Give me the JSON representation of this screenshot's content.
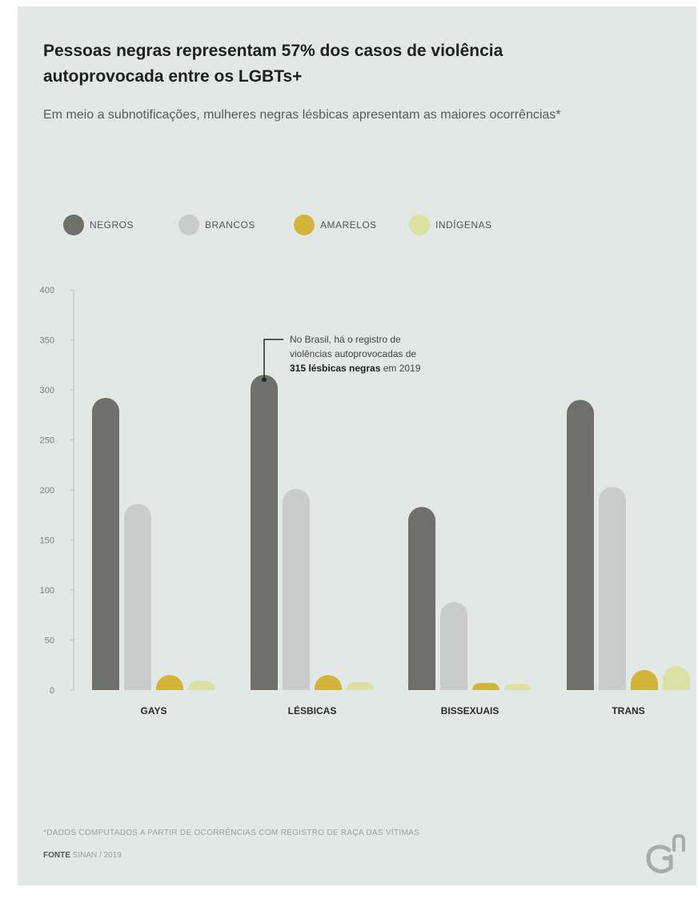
{
  "header": {
    "title": "Pessoas negras representam 57% dos casos de violência autoprovocada entre os LGBTs+",
    "subtitle": "Em meio a subnotificações, mulheres negras lésbicas apresentam as maiores ocorrências*"
  },
  "footer": {
    "footnote": "*DADOS COMPUTADOS A PARTIR DE OCORRÊNCIAS COM REGISTRO DE RAÇA DAS VÍTIMAS",
    "source_label": "FONTE",
    "source_text": "SINAN / 2019"
  },
  "logo": {
    "icon": "gn-logo-icon"
  },
  "colors": {
    "background": "#e1e8e6",
    "grid": "#b9c1bf"
  },
  "chart_data": {
    "type": "bar",
    "categories": [
      "GAYS",
      "LÉSBICAS",
      "BISSEXUAIS",
      "TRANS"
    ],
    "series": [
      {
        "name": "NEGROS",
        "color": "#6f6f6b",
        "values": [
          292,
          315,
          183,
          290
        ]
      },
      {
        "name": "BRANCOS",
        "color": "#c9ccca",
        "values": [
          186,
          201,
          88,
          203
        ]
      },
      {
        "name": "AMARELOS",
        "color": "#d3b43b",
        "values": [
          15,
          15,
          7,
          20
        ]
      },
      {
        "name": "INDÍGENAS",
        "color": "#dbe0a3",
        "values": [
          9,
          8,
          6,
          24
        ]
      }
    ],
    "ylim": [
      0,
      400
    ],
    "yticks": [
      0,
      50,
      100,
      150,
      200,
      250,
      300,
      350,
      400
    ],
    "grid": false,
    "legend": "top-left",
    "annotation": {
      "category": "LÉSBICAS",
      "series": "NEGROS",
      "text_lines": [
        "No Brasil, há o registro de",
        "violências autoprovocadas de"
      ],
      "bold_text": "315 lésbicas negras",
      "tail_text": " em 2019"
    }
  }
}
